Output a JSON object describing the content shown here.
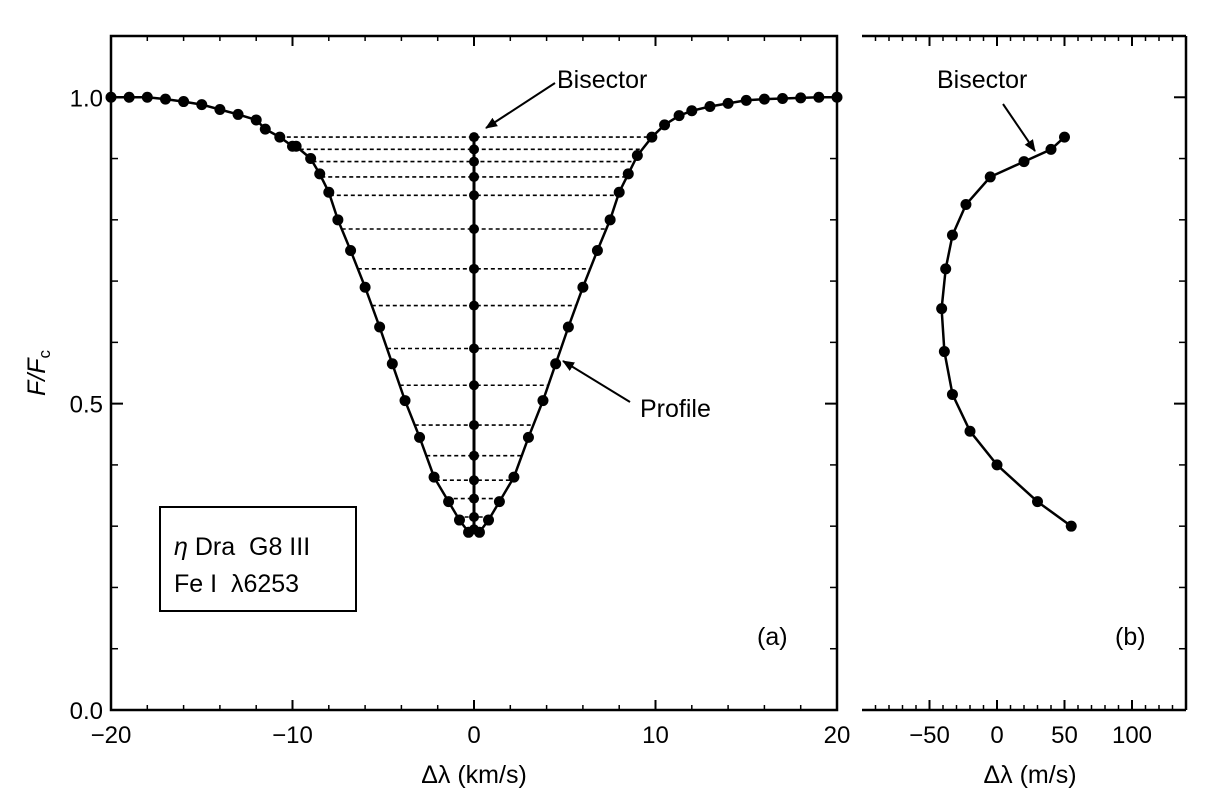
{
  "chart_data": [
    {
      "panel": "a",
      "type": "line",
      "panel_label": "(a)",
      "xlabel": "Δλ (km/s)",
      "ylabel_main": "F/F",
      "ylabel_sub": "c",
      "xlim": [
        -20,
        20
      ],
      "ylim": [
        0,
        1.1
      ],
      "xticks": [
        -20,
        -10,
        0,
        10,
        20
      ],
      "xtick_labels": [
        "−20",
        "−10",
        "0",
        "10",
        "20"
      ],
      "yticks": [
        0,
        0.5,
        1.0
      ],
      "ytick_labels": [
        "0.0",
        "0.5",
        "1.0"
      ],
      "ygrid_minor": [
        0.1,
        0.2,
        0.3,
        0.4,
        0.6,
        0.7,
        0.8,
        0.9,
        1.1
      ],
      "profile": {
        "name": "Profile",
        "x": [
          -20.0,
          -19.0,
          -18.0,
          -17.0,
          -16.0,
          -15.0,
          -14.0,
          -13.0,
          -12.0,
          -11.5,
          -10.7,
          -10.0,
          -9.8,
          -9.0,
          -8.5,
          -8.0,
          -7.5,
          -6.8,
          -6.0,
          -5.2,
          -4.5,
          -3.8,
          -3.0,
          -2.2,
          -1.4,
          -0.8,
          -0.3,
          0.3,
          0.8,
          1.4,
          2.2,
          3.0,
          3.8,
          4.5,
          5.2,
          6.0,
          6.8,
          7.5,
          8.0,
          8.5,
          9.0,
          9.8,
          10.5,
          11.3,
          12.0,
          13.0,
          14.0,
          15.0,
          16.0,
          17.0,
          18.0,
          19.0,
          20.0
        ],
        "y": [
          1.0,
          1.0,
          1.0,
          0.997,
          0.993,
          0.988,
          0.98,
          0.972,
          0.963,
          0.948,
          0.935,
          0.92,
          0.92,
          0.9,
          0.875,
          0.845,
          0.8,
          0.75,
          0.69,
          0.625,
          0.565,
          0.505,
          0.445,
          0.38,
          0.34,
          0.31,
          0.29,
          0.29,
          0.31,
          0.34,
          0.38,
          0.445,
          0.505,
          0.565,
          0.625,
          0.69,
          0.75,
          0.8,
          0.845,
          0.875,
          0.905,
          0.935,
          0.955,
          0.97,
          0.978,
          0.985,
          0.99,
          0.995,
          0.997,
          0.998,
          0.999,
          1.0,
          1.0
        ]
      },
      "bisector": {
        "name": "Bisector",
        "x": [
          0,
          0,
          0,
          0,
          0,
          0,
          0,
          0,
          0,
          0,
          0,
          0,
          0,
          0,
          0,
          0
        ],
        "y": [
          0.935,
          0.915,
          0.895,
          0.87,
          0.84,
          0.785,
          0.72,
          0.66,
          0.59,
          0.53,
          0.465,
          0.415,
          0.375,
          0.345,
          0.315,
          0.295
        ]
      },
      "levels_y": [
        0.935,
        0.915,
        0.895,
        0.87,
        0.84,
        0.785,
        0.72,
        0.66,
        0.59,
        0.53,
        0.465,
        0.415,
        0.375,
        0.345,
        0.315
      ],
      "annotations": {
        "bisector_label": "Bisector",
        "profile_label": "Profile"
      },
      "legend_box": {
        "line1_symbol": "η",
        "line1_text": " Dra  G8 III",
        "line2_text": "Fe I  λ6253"
      }
    },
    {
      "panel": "b",
      "type": "line",
      "panel_label": "(b)",
      "xlabel": "Δλ (m/s)",
      "xlim": [
        -100,
        140
      ],
      "ylim": [
        0,
        1.1
      ],
      "xticks": [
        -50,
        0,
        50,
        100
      ],
      "xtick_labels": [
        "−50",
        "0",
        "50",
        "100"
      ],
      "series": [
        {
          "name": "Bisector",
          "x": [
            50,
            40,
            20,
            -5,
            -23,
            -33,
            -38,
            -41,
            -39,
            -33,
            -20,
            0,
            30,
            55
          ],
          "y": [
            0.935,
            0.915,
            0.895,
            0.87,
            0.825,
            0.775,
            0.72,
            0.655,
            0.585,
            0.515,
            0.455,
            0.4,
            0.34,
            0.3
          ]
        }
      ],
      "annotations": {
        "bisector_label": "Bisector"
      }
    }
  ]
}
